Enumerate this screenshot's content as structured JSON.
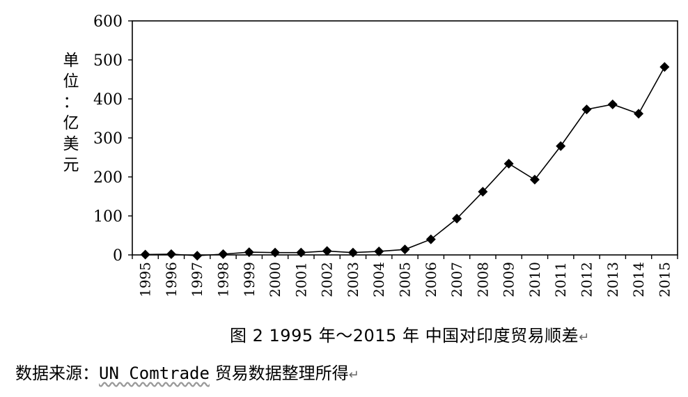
{
  "chart_data": {
    "type": "line",
    "ylabel": [
      "单",
      "位",
      "：",
      "亿",
      "美",
      "元"
    ],
    "ylim": [
      0,
      600
    ],
    "yticks": [
      0,
      100,
      200,
      300,
      400,
      500,
      600
    ],
    "categories": [
      "1995",
      "1996",
      "1997",
      "1998",
      "1999",
      "2000",
      "2001",
      "2002",
      "2003",
      "2004",
      "2005",
      "2006",
      "2007",
      "2008",
      "2009",
      "2010",
      "2011",
      "2012",
      "2013",
      "2014",
      "2015"
    ],
    "values": [
      1,
      2,
      -2,
      2,
      7,
      6,
      6,
      10,
      6,
      9,
      14,
      40,
      93,
      162,
      234,
      193,
      279,
      373,
      386,
      362,
      482
    ],
    "grid": false,
    "marker": "diamond",
    "line_color": "#000000"
  },
  "caption": {
    "figure_no": "图 2 ",
    "text": "1995 年～2015 年 中国对印度贸易顺差",
    "mark": "↵"
  },
  "source": {
    "prefix": "数据来源：",
    "org": "UN Comtrade",
    "suffix": " 贸易数据整理所得",
    "mark": "↵"
  }
}
